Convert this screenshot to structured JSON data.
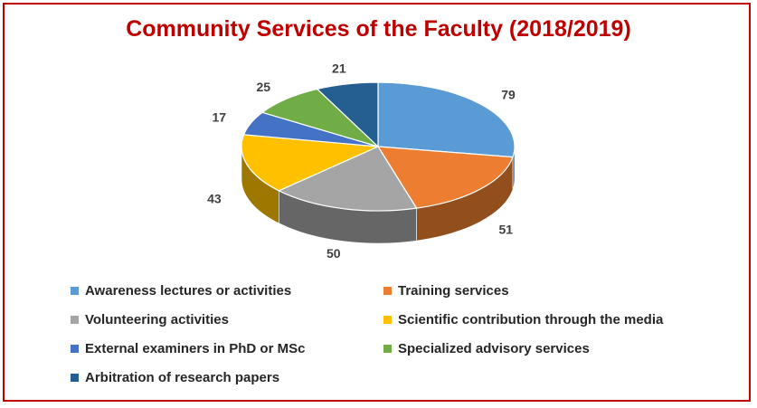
{
  "chart_data": {
    "type": "pie",
    "style": "3d",
    "title": "Community Services of the Faculty (2018/2019)",
    "legend_position": "bottom",
    "series": [
      {
        "name": "Awareness lectures or activities",
        "value": 79,
        "color": "#5b9bd5"
      },
      {
        "name": "Training services",
        "value": 51,
        "color": "#ed7d31"
      },
      {
        "name": "Volunteering activities",
        "value": 50,
        "color": "#a5a5a5"
      },
      {
        "name": "Scientific contribution through the media",
        "value": 43,
        "color": "#ffc000"
      },
      {
        "name": "External  examiners in PhD or MSc",
        "value": 17,
        "color": "#4472c4"
      },
      {
        "name": "Specialized advisory services",
        "value": 25,
        "color": "#70ad47"
      },
      {
        "name": "Arbitration of research papers",
        "value": 21,
        "color": "#255e91"
      }
    ]
  },
  "colors": {
    "border": "#c00000",
    "title": "#c00000"
  }
}
